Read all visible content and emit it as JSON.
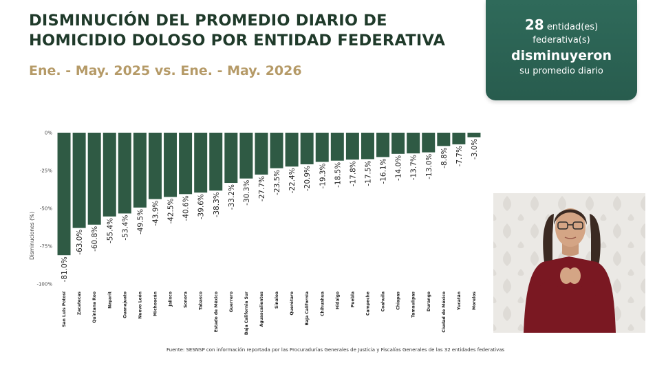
{
  "header": {
    "title_line1": "DISMINUCIÓN DEL PROMEDIO DIARIO DE",
    "title_line2": "HOMICIDIO DOLOSO POR ENTIDAD FEDERATIVA",
    "subtitle": "Ene. - May. 2025 vs. Ene. - May. 2026"
  },
  "summary": {
    "count": "28",
    "line1_suffix": "entidad(es)",
    "line2": "federativa(s)",
    "line3": "disminuyeron",
    "line4": "su promedio diario"
  },
  "source": "Fuente: SESNSP con información reportada por las Procuradurías Generales de Justicia y Fiscalías Generales de las 32 entidades federativas",
  "colors": {
    "bar": "#2f5a44",
    "title": "#1f3a2a",
    "subtitle": "#b59a67",
    "card": "#2f6a5a"
  },
  "chart_data": {
    "type": "bar",
    "orientation": "vertical-downward",
    "ylabel": "Disminuciones (%)",
    "ylim": [
      -100,
      0
    ],
    "yticks": [
      "0%",
      "-25%",
      "-50%",
      "-75%",
      "-100%"
    ],
    "categories": [
      "San Luis Potosí",
      "Zacatecas",
      "Quintana Roo",
      "Nayarit",
      "Guanajuato",
      "Nuevo León",
      "Michoacán",
      "Jalisco",
      "Sonora",
      "Tabasco",
      "Estado de México",
      "Guerrero",
      "Baja California Sur",
      "Aguascalientes",
      "Sinaloa",
      "Querétaro",
      "Baja California",
      "Chihuahua",
      "Hidalgo",
      "Puebla",
      "Campeche",
      "Coahuila",
      "Chiapas",
      "Tamaulipas",
      "Durango",
      "Ciudad de México",
      "Yucatán",
      "Morelos"
    ],
    "values": [
      -81.0,
      -63.0,
      -60.8,
      -55.4,
      -53.4,
      -49.5,
      -43.9,
      -42.5,
      -40.6,
      -39.6,
      -38.3,
      -33.2,
      -30.3,
      -27.7,
      -23.5,
      -22.4,
      -20.9,
      -19.3,
      -18.5,
      -17.8,
      -17.5,
      -16.1,
      -14.0,
      -13.7,
      -13.0,
      -8.8,
      -7.7,
      -3.0
    ],
    "labels": [
      "-81.0%",
      "-63.0%",
      "-60.8%",
      "-55.4%",
      "-53.4%",
      "-49.5%",
      "-43.9%",
      "-42.5%",
      "-40.6%",
      "-39.6%",
      "-38.3%",
      "-33.2%",
      "-30.3%",
      "-27.7%",
      "-23.5%",
      "-22.4%",
      "-20.9%",
      "-19.3%",
      "-18.5%",
      "-17.8%",
      "-17.5%",
      "-16.1%",
      "-14.0%",
      "-13.7%",
      "-13.0%",
      "-8.8%",
      "-7.7%",
      "-3.0%"
    ]
  }
}
